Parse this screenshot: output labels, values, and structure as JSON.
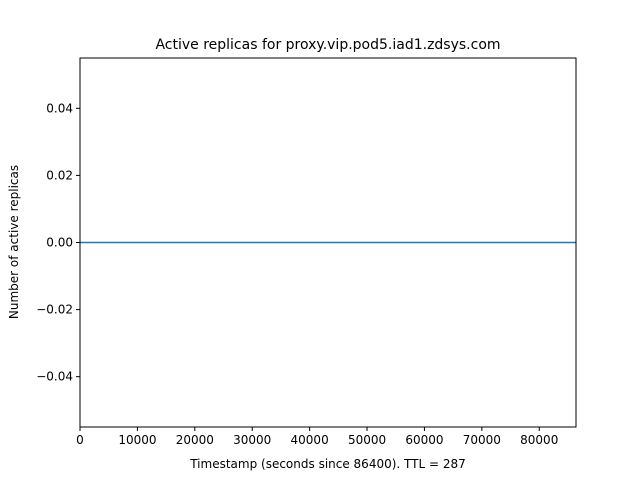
{
  "chart_data": {
    "type": "line",
    "title": "Active replicas for proxy.vip.pod5.iad1.zdsys.com",
    "xlabel": "Timestamp (seconds since 86400). TTL = 287",
    "ylabel": "Number of active replicas",
    "xlim": [
      0,
      86400
    ],
    "ylim": [
      -0.055,
      0.055
    ],
    "x_ticks": [
      0,
      10000,
      20000,
      30000,
      40000,
      50000,
      60000,
      70000,
      80000
    ],
    "x_tick_labels": [
      "0",
      "10000",
      "20000",
      "30000",
      "40000",
      "50000",
      "60000",
      "70000",
      "80000"
    ],
    "y_ticks": [
      -0.04,
      -0.02,
      0.0,
      0.02,
      0.04
    ],
    "y_tick_labels": [
      "−0.04",
      "−0.02",
      "0.00",
      "0.02",
      "0.04"
    ],
    "grid": false,
    "series": [
      {
        "color": "#1f77b4",
        "x": [
          0,
          86400
        ],
        "y": [
          0,
          0
        ]
      }
    ]
  }
}
